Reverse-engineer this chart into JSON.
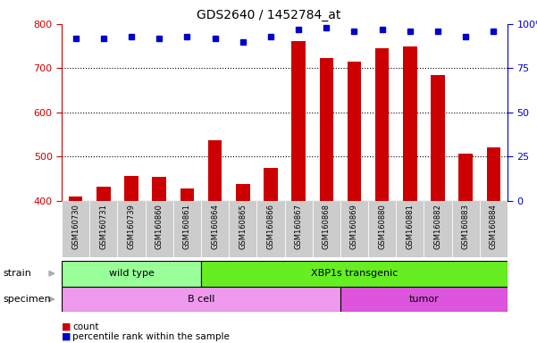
{
  "title": "GDS2640 / 1452784_at",
  "samples": [
    "GSM160730",
    "GSM160731",
    "GSM160739",
    "GSM160860",
    "GSM160861",
    "GSM160864",
    "GSM160865",
    "GSM160866",
    "GSM160867",
    "GSM160868",
    "GSM160869",
    "GSM160880",
    "GSM160881",
    "GSM160882",
    "GSM160883",
    "GSM160884"
  ],
  "counts": [
    410,
    432,
    455,
    454,
    428,
    537,
    438,
    474,
    762,
    722,
    714,
    745,
    750,
    685,
    507,
    520
  ],
  "percentile": [
    92,
    92,
    93,
    92,
    93,
    92,
    90,
    93,
    97,
    98,
    96,
    97,
    96,
    96,
    93,
    96
  ],
  "ylim_left": [
    400,
    800
  ],
  "ylim_right": [
    0,
    100
  ],
  "yticks_left": [
    400,
    500,
    600,
    700,
    800
  ],
  "yticks_right": [
    0,
    25,
    50,
    75,
    100
  ],
  "bar_color": "#cc0000",
  "dot_color": "#0000cc",
  "strain_groups": [
    {
      "label": "wild type",
      "start": 0,
      "end": 5,
      "color": "#99ff99"
    },
    {
      "label": "XBP1s transgenic",
      "start": 5,
      "end": 16,
      "color": "#66ee22"
    }
  ],
  "specimen_groups": [
    {
      "label": "B cell",
      "start": 0,
      "end": 10,
      "color": "#ee99ee"
    },
    {
      "label": "tumor",
      "start": 10,
      "end": 16,
      "color": "#dd55dd"
    }
  ],
  "strain_label": "strain",
  "specimen_label": "specimen",
  "legend_count_label": "count",
  "legend_pct_label": "percentile rank within the sample",
  "bg_color": "#ffffff",
  "tick_bg_color": "#cccccc",
  "arrow_color": "#aaaaaa"
}
